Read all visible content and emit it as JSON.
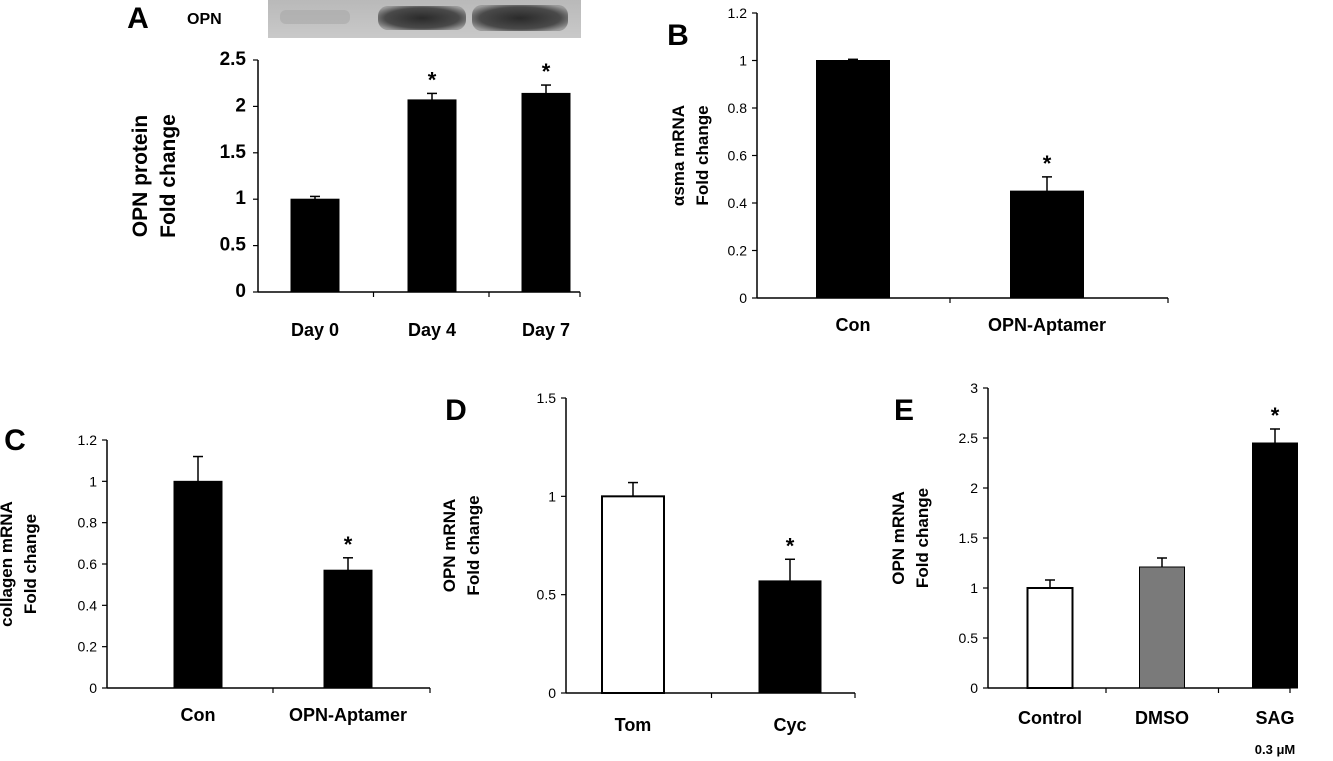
{
  "chart_data": [
    {
      "panel": "A",
      "type": "bar",
      "blot_label": "OPN",
      "categories": [
        "Day 0",
        "Day 4",
        "Day 7"
      ],
      "values": [
        1.0,
        2.07,
        2.14
      ],
      "errors": [
        0.03,
        0.07,
        0.09
      ],
      "significance": [
        "",
        "*",
        "*"
      ],
      "ylabel": [
        "OPN protein",
        "Fold change"
      ],
      "ylim": [
        0,
        2.5
      ],
      "yticks": [
        "0",
        "0.5",
        "1",
        "1.5",
        "2",
        "2.5"
      ],
      "bar_colors": [
        "#000000",
        "#000000",
        "#000000"
      ]
    },
    {
      "panel": "B",
      "type": "bar",
      "categories": [
        "Con",
        "OPN-Aptamer"
      ],
      "values": [
        1.0,
        0.45
      ],
      "errors": [
        0.005,
        0.06
      ],
      "significance": [
        "",
        "*"
      ],
      "ylabel": [
        "αsma mRNA",
        "Fold change"
      ],
      "ylim": [
        0,
        1.2
      ],
      "yticks": [
        "0",
        "0.2",
        "0.4",
        "0.6",
        "0.8",
        "1",
        "1.2"
      ],
      "bar_colors": [
        "#000000",
        "#000000"
      ]
    },
    {
      "panel": "C",
      "type": "bar",
      "categories": [
        "Con",
        "OPN-Aptamer"
      ],
      "values": [
        1.0,
        0.57
      ],
      "errors": [
        0.12,
        0.06
      ],
      "significance": [
        "",
        "*"
      ],
      "ylabel": [
        "collagen mRNA",
        "Fold change"
      ],
      "ylim": [
        0,
        1.2
      ],
      "yticks": [
        "0",
        "0.2",
        "0.4",
        "0.6",
        "0.8",
        "1",
        "1.2"
      ],
      "bar_colors": [
        "#000000",
        "#000000"
      ]
    },
    {
      "panel": "D",
      "type": "bar",
      "categories": [
        "Tom",
        "Cyc"
      ],
      "values": [
        1.0,
        0.57
      ],
      "errors": [
        0.07,
        0.11
      ],
      "significance": [
        "",
        "*"
      ],
      "ylabel": [
        "OPN mRNA",
        "Fold change"
      ],
      "ylim": [
        0,
        1.5
      ],
      "yticks": [
        "0",
        "0.5",
        "1",
        "1.5"
      ],
      "bar_colors": [
        "#ffffff",
        "#000000"
      ]
    },
    {
      "panel": "E",
      "type": "bar",
      "categories": [
        "Control",
        "DMSO",
        "SAG"
      ],
      "category_sublabels": [
        "",
        "",
        "0.3 μM"
      ],
      "values": [
        1.0,
        1.21,
        2.45
      ],
      "errors": [
        0.08,
        0.09,
        0.14
      ],
      "significance": [
        "",
        "",
        "*"
      ],
      "ylabel": [
        "OPN mRNA",
        "Fold change"
      ],
      "ylim": [
        0,
        3
      ],
      "yticks": [
        "0",
        "0.5",
        "1",
        "1.5",
        "2",
        "2.5",
        "3"
      ],
      "bar_colors": [
        "#ffffff",
        "#7a7a7a",
        "#000000"
      ]
    }
  ]
}
